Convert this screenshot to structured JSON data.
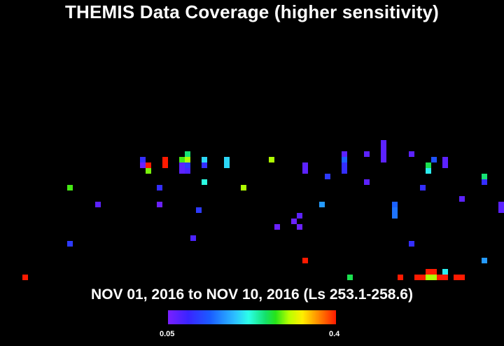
{
  "title": "THEMIS Data Coverage (higher sensitivity)",
  "subtitle": "NOV 01, 2016 to NOV 10, 2016 (Ls 253.1-258.6)",
  "colorbar": {
    "min_label": "0.05",
    "max_label": "0.4",
    "min": 0.05,
    "max": 0.4
  },
  "colors": {
    "background": "#000000",
    "text": "#ffffff"
  },
  "coverage_cells": [
    {
      "c": 4,
      "r": 49,
      "v": 0.4
    },
    {
      "c": 12,
      "r": 33,
      "v": 0.28
    },
    {
      "c": 12,
      "r": 43,
      "v": 0.11
    },
    {
      "c": 17,
      "r": 36,
      "v": 0.07
    },
    {
      "c": 25,
      "r": 28,
      "v": 0.1
    },
    {
      "c": 25,
      "r": 29,
      "v": 0.06
    },
    {
      "c": 26,
      "r": 29,
      "v": 0.4
    },
    {
      "c": 26,
      "r": 30,
      "v": 0.29
    },
    {
      "c": 28,
      "r": 33,
      "v": 0.1
    },
    {
      "c": 28,
      "r": 36,
      "v": 0.06
    },
    {
      "c": 29,
      "r": 28,
      "v": 0.4
    },
    {
      "c": 29,
      "r": 29,
      "v": 0.4
    },
    {
      "c": 32,
      "r": 28,
      "v": 0.28
    },
    {
      "c": 32,
      "r": 29,
      "v": 0.07
    },
    {
      "c": 32,
      "r": 30,
      "v": 0.07
    },
    {
      "c": 33,
      "r": 27,
      "v": 0.25
    },
    {
      "c": 33,
      "r": 28,
      "v": 0.3
    },
    {
      "c": 33,
      "r": 29,
      "v": 0.11
    },
    {
      "c": 33,
      "r": 30,
      "v": 0.08
    },
    {
      "c": 34,
      "r": 42,
      "v": 0.08
    },
    {
      "c": 35,
      "r": 37,
      "v": 0.11
    },
    {
      "c": 36,
      "r": 28,
      "v": 0.2
    },
    {
      "c": 36,
      "r": 29,
      "v": 0.1
    },
    {
      "c": 36,
      "r": 32,
      "v": 0.22
    },
    {
      "c": 40,
      "r": 28,
      "v": 0.2
    },
    {
      "c": 40,
      "r": 29,
      "v": 0.2
    },
    {
      "c": 43,
      "r": 33,
      "v": 0.3
    },
    {
      "c": 48,
      "r": 28,
      "v": 0.3
    },
    {
      "c": 49,
      "r": 40,
      "v": 0.06
    },
    {
      "c": 52,
      "r": 39,
      "v": 0.06
    },
    {
      "c": 53,
      "r": 38,
      "v": 0.07
    },
    {
      "c": 53,
      "r": 40,
      "v": 0.06
    },
    {
      "c": 54,
      "r": 29,
      "v": 0.07
    },
    {
      "c": 54,
      "r": 30,
      "v": 0.07
    },
    {
      "c": 54,
      "r": 46,
      "v": 0.4
    },
    {
      "c": 57,
      "r": 36,
      "v": 0.17
    },
    {
      "c": 58,
      "r": 31,
      "v": 0.11
    },
    {
      "c": 61,
      "r": 27,
      "v": 0.07
    },
    {
      "c": 61,
      "r": 28,
      "v": 0.14
    },
    {
      "c": 61,
      "r": 29,
      "v": 0.1
    },
    {
      "c": 61,
      "r": 30,
      "v": 0.1
    },
    {
      "c": 62,
      "r": 49,
      "v": 0.26
    },
    {
      "c": 65,
      "r": 27,
      "v": 0.07
    },
    {
      "c": 65,
      "r": 32,
      "v": 0.07
    },
    {
      "c": 68,
      "r": 25,
      "v": 0.07
    },
    {
      "c": 68,
      "r": 26,
      "v": 0.07
    },
    {
      "c": 68,
      "r": 27,
      "v": 0.07
    },
    {
      "c": 68,
      "r": 28,
      "v": 0.07
    },
    {
      "c": 70,
      "r": 36,
      "v": 0.14
    },
    {
      "c": 70,
      "r": 37,
      "v": 0.15
    },
    {
      "c": 70,
      "r": 38,
      "v": 0.15
    },
    {
      "c": 71,
      "r": 49,
      "v": 0.4
    },
    {
      "c": 73,
      "r": 27,
      "v": 0.07
    },
    {
      "c": 73,
      "r": 43,
      "v": 0.1
    },
    {
      "c": 74,
      "r": 49,
      "v": 0.4
    },
    {
      "c": 75,
      "r": 49,
      "v": 0.4
    },
    {
      "c": 75,
      "r": 33,
      "v": 0.1
    },
    {
      "c": 76,
      "r": 29,
      "v": 0.26
    },
    {
      "c": 76,
      "r": 30,
      "v": 0.21
    },
    {
      "c": 76,
      "r": 48,
      "v": 0.4
    },
    {
      "c": 76,
      "r": 49,
      "v": 0.3
    },
    {
      "c": 77,
      "r": 28,
      "v": 0.13
    },
    {
      "c": 77,
      "r": 48,
      "v": 0.4
    },
    {
      "c": 77,
      "r": 49,
      "v": 0.3
    },
    {
      "c": 78,
      "r": 49,
      "v": 0.4
    },
    {
      "c": 79,
      "r": 28,
      "v": 0.07
    },
    {
      "c": 79,
      "r": 29,
      "v": 0.07
    },
    {
      "c": 79,
      "r": 48,
      "v": 0.21
    },
    {
      "c": 79,
      "r": 49,
      "v": 0.4
    },
    {
      "c": 81,
      "r": 49,
      "v": 0.4
    },
    {
      "c": 82,
      "r": 49,
      "v": 0.4
    },
    {
      "c": 82,
      "r": 35,
      "v": 0.07
    },
    {
      "c": 86,
      "r": 31,
      "v": 0.25
    },
    {
      "c": 86,
      "r": 32,
      "v": 0.1
    },
    {
      "c": 86,
      "r": 46,
      "v": 0.17
    },
    {
      "c": 89,
      "r": 36,
      "v": 0.07
    },
    {
      "c": 89,
      "r": 37,
      "v": 0.07
    }
  ]
}
